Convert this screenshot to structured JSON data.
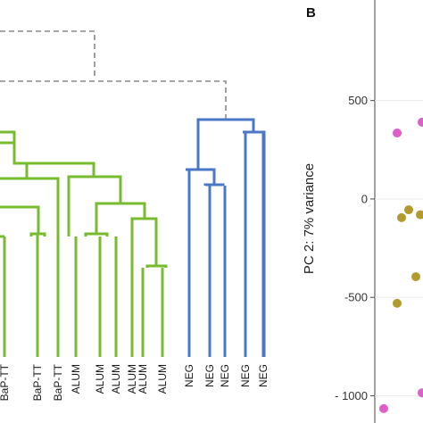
{
  "chart_data": [
    {
      "type": "dendrogram",
      "leaves": [
        {
          "label": "BaP-TT",
          "group": "green"
        },
        {
          "label": "BaP-TT",
          "group": "green"
        },
        {
          "label": "BaP-TT",
          "group": "green"
        },
        {
          "label": "ALUM",
          "group": "green"
        },
        {
          "label": "ALUM",
          "group": "green"
        },
        {
          "label": "ALUM",
          "group": "green"
        },
        {
          "label": "ALUM",
          "group": "green"
        },
        {
          "label": "ALUM",
          "group": "green"
        },
        {
          "label": "ALUM",
          "group": "green"
        },
        {
          "label": "NEG",
          "group": "blue"
        },
        {
          "label": "NEG",
          "group": "blue"
        },
        {
          "label": "NEG",
          "group": "blue"
        },
        {
          "label": "NEG",
          "group": "blue"
        },
        {
          "label": "NEG",
          "group": "blue"
        }
      ],
      "cluster_colors": {
        "green": "#77bb2e",
        "blue": "#4a78c6",
        "root": "#888888"
      }
    },
    {
      "type": "scatter",
      "panel_label": "B",
      "ylabel": "PC 2: 7% variance",
      "y_ticks": [
        500,
        0,
        -500,
        -1000
      ],
      "ylim": [
        -1120,
        920
      ],
      "points": [
        {
          "y": 390,
          "color": "#dd5fc9"
        },
        {
          "y": 335,
          "color": "#dd5fc9"
        },
        {
          "y": -55,
          "color": "#b39a2e"
        },
        {
          "y": -80,
          "color": "#b39a2e"
        },
        {
          "y": -95,
          "color": "#b39a2e"
        },
        {
          "y": -395,
          "color": "#b39a2e"
        },
        {
          "y": -530,
          "color": "#b39a2e"
        },
        {
          "y": -985,
          "color": "#dd5fc9"
        },
        {
          "y": -1065,
          "color": "#dd5fc9"
        }
      ]
    }
  ]
}
